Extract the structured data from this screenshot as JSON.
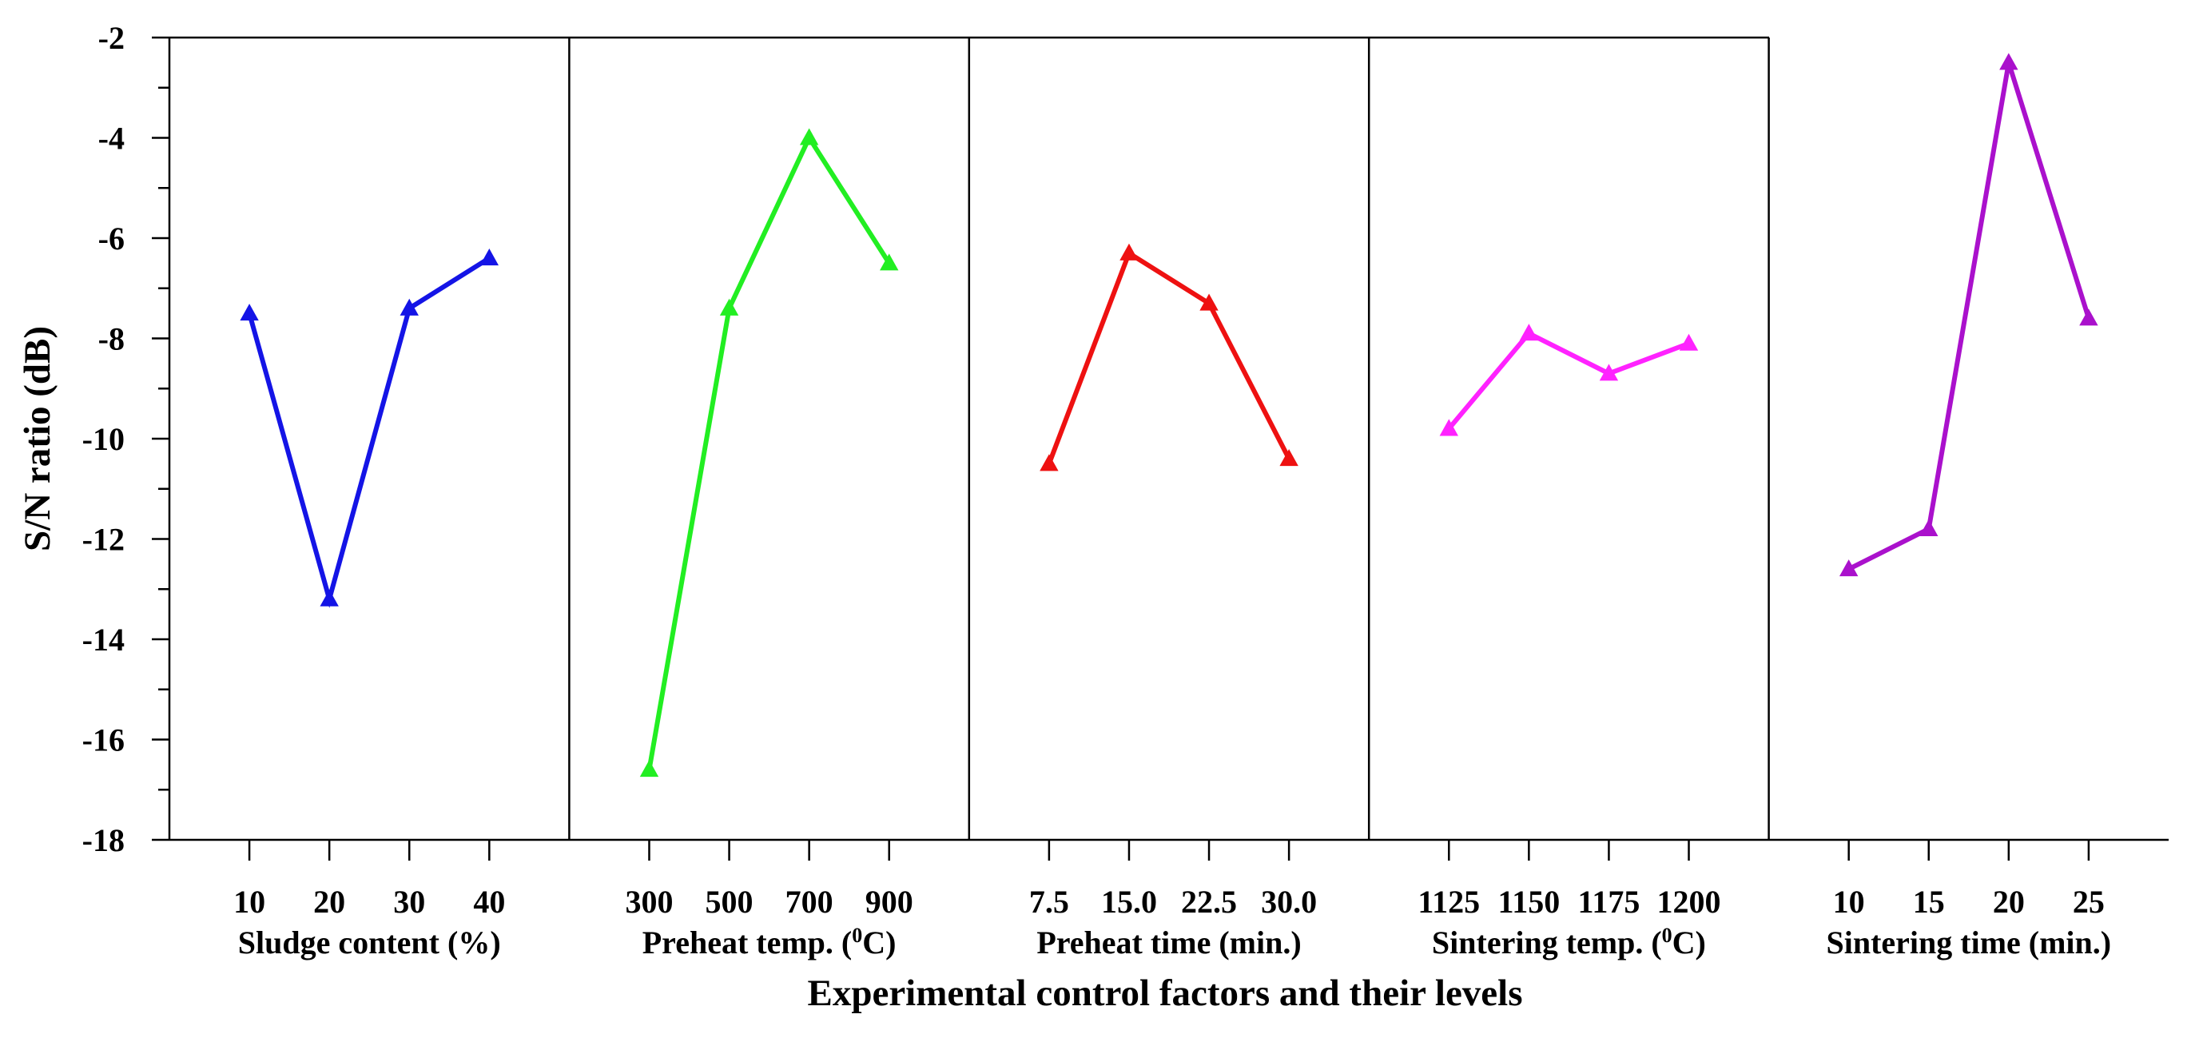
{
  "chart_data": {
    "type": "line",
    "title": "",
    "xlabel": "Experimental control factors and their levels",
    "ylabel": "S/N ratio (dB)",
    "ylim": [
      -18,
      -2
    ],
    "yticks": [
      -2,
      -4,
      -6,
      -8,
      -10,
      -12,
      -14,
      -16,
      -18
    ],
    "grid": false,
    "panels": [
      {
        "name": "Sludge content (%)",
        "categories": [
          "10",
          "20",
          "30",
          "40"
        ],
        "values": [
          -7.5,
          -13.2,
          -7.4,
          -6.4
        ],
        "color": "#1414e6"
      },
      {
        "name": "Preheat temp. (°C)",
        "name_parts": [
          "Preheat temp. (",
          "0",
          "C)"
        ],
        "categories": [
          "300",
          "500",
          "700",
          "900"
        ],
        "values": [
          -16.6,
          -7.4,
          -4.0,
          -6.5
        ],
        "color": "#22ee22"
      },
      {
        "name": "Preheat time (min.)",
        "categories": [
          "7.5",
          "15.0",
          "22.5",
          "30.0"
        ],
        "values": [
          -10.5,
          -6.3,
          -7.3,
          -10.4
        ],
        "color": "#ee1111"
      },
      {
        "name": "Sintering temp. (°C)",
        "name_parts": [
          "Sintering temp. (",
          "0",
          "C)"
        ],
        "categories": [
          "1125",
          "1150",
          "1175",
          "1200"
        ],
        "values": [
          -9.8,
          -7.9,
          -8.7,
          -8.1
        ],
        "color": "#ff22ff"
      },
      {
        "name": "Sintering time (min.)",
        "categories": [
          "10",
          "15",
          "20",
          "25"
        ],
        "values": [
          -12.6,
          -11.8,
          -2.5,
          -7.6
        ],
        "color": "#aa11cc"
      }
    ]
  }
}
